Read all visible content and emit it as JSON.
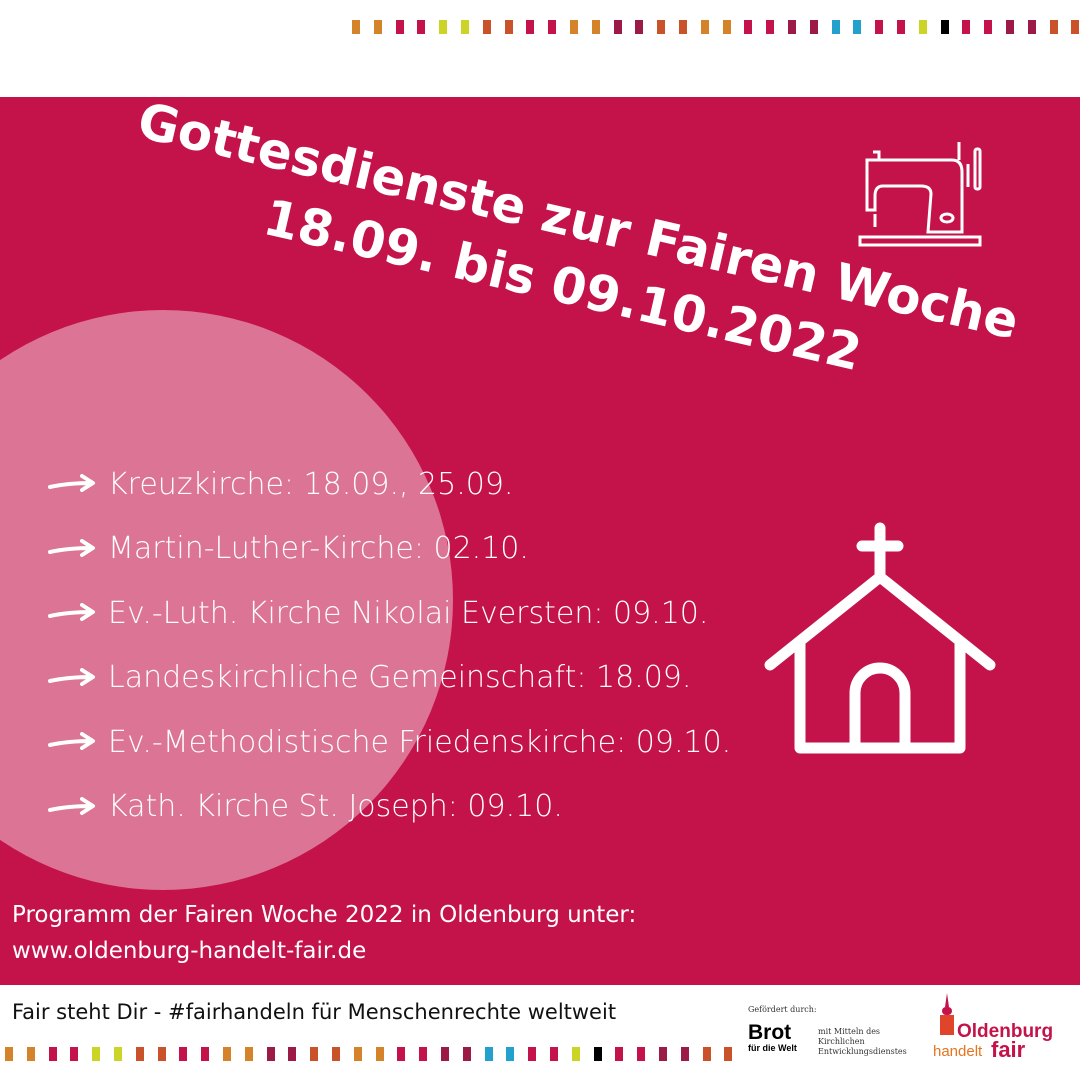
{
  "colors": {
    "band": "#c4124a",
    "circle": "#dc7495",
    "orange": "#d5832a",
    "crimson": "#c4124a",
    "yellow": "#cdd428",
    "rust": "#c9522a",
    "plum": "#9c1a48",
    "blue": "#21a1cc",
    "black": "#000000"
  },
  "dot_sequence": [
    "orange",
    "orange",
    "crimson",
    "crimson",
    "yellow",
    "yellow",
    "rust",
    "rust",
    "crimson",
    "crimson",
    "orange",
    "orange",
    "plum",
    "plum",
    "rust",
    "rust",
    "orange",
    "orange",
    "crimson",
    "crimson",
    "plum",
    "plum",
    "blue",
    "blue",
    "crimson",
    "crimson",
    "yellow",
    "black",
    "crimson",
    "crimson",
    "plum",
    "plum",
    "rust",
    "rust"
  ],
  "title": {
    "line1": "Gottesdienste zur Fairen Woche",
    "line2": "18.09. bis 09.10.2022"
  },
  "icons": {
    "sewing": "sewing-machine-icon",
    "church": "church-icon",
    "arrow": "arrow-right-icon"
  },
  "services": [
    {
      "label": "Kreuzkirche: 18.09., 25.09."
    },
    {
      "label": "Martin-Luther-Kirche: 02.10."
    },
    {
      "label": "Ev.-Luth. Kirche Nikolai Eversten: 09.10."
    },
    {
      "label": "Landeskirchliche Gemeinschaft: 18.09."
    },
    {
      "label": "Ev.-Methodistische Friedenskirche: 09.10."
    },
    {
      "label": "Kath. Kirche St. Joseph: 09.10."
    }
  ],
  "program": {
    "line1": "Programm der Fairen Woche 2022 in Oldenburg unter:",
    "url": "www.oldenburg-handelt-fair.de"
  },
  "footer": {
    "slogan": "Fair steht Dir - #fairhandeln für Menschenrechte weltweit",
    "funded_by": "Gefördert durch:",
    "brot_logo": {
      "line1": "Brot",
      "line2": "für die Welt"
    },
    "funding_note": [
      "mit Mitteln des",
      "Kirchlichen",
      "Entwicklungsdienstes"
    ],
    "oldenburg_logo": {
      "line1": "Oldenburg",
      "line2a": "handelt",
      "line2b": "fair"
    }
  }
}
